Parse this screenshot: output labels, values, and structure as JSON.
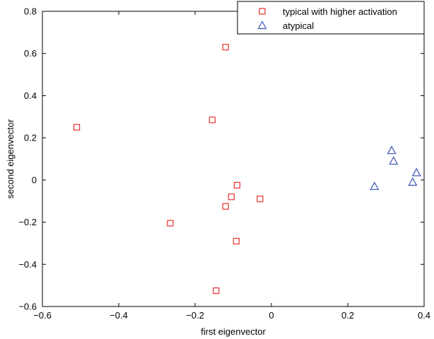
{
  "chart_data": {
    "type": "scatter",
    "title": "",
    "xlabel": "first eigenvector",
    "ylabel": "second eigenvector",
    "xlim": [
      -0.6,
      0.4
    ],
    "ylim": [
      -0.6,
      0.8
    ],
    "xticks": [
      -0.6,
      -0.4,
      -0.2,
      0,
      0.2,
      0.4
    ],
    "yticks": [
      -0.6,
      -0.4,
      -0.2,
      0,
      0.2,
      0.4,
      0.6,
      0.8
    ],
    "xtick_labels": [
      "−0.6",
      "−0.4",
      "−0.2",
      "0",
      "0.2",
      "0.4"
    ],
    "ytick_labels": [
      "−0.6",
      "−0.4",
      "−0.2",
      "0",
      "0.2",
      "0.4",
      "0.6",
      "0.8"
    ],
    "grid": false,
    "legend_position": "top-right",
    "series": [
      {
        "name": "typical with higher activation",
        "marker": "square",
        "color": "#e8312d",
        "points": [
          {
            "x": -0.12,
            "y": 0.63
          },
          {
            "x": -0.51,
            "y": 0.25
          },
          {
            "x": -0.155,
            "y": 0.285
          },
          {
            "x": -0.09,
            "y": -0.025
          },
          {
            "x": -0.105,
            "y": -0.08
          },
          {
            "x": -0.12,
            "y": -0.125
          },
          {
            "x": -0.03,
            "y": -0.09
          },
          {
            "x": -0.265,
            "y": -0.205
          },
          {
            "x": -0.092,
            "y": -0.29
          },
          {
            "x": -0.145,
            "y": -0.525
          }
        ]
      },
      {
        "name": "atypical",
        "marker": "triangle",
        "color": "#3a55b0",
        "points": [
          {
            "x": 0.27,
            "y": -0.03
          },
          {
            "x": 0.315,
            "y": 0.14
          },
          {
            "x": 0.32,
            "y": 0.09
          },
          {
            "x": 0.37,
            "y": -0.01
          },
          {
            "x": 0.38,
            "y": 0.035
          }
        ]
      }
    ]
  }
}
